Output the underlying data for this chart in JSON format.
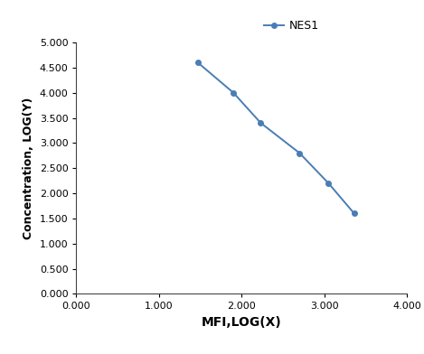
{
  "x": [
    1.47,
    1.9,
    2.23,
    2.7,
    3.05,
    3.36
  ],
  "y": [
    4.6,
    4.0,
    3.4,
    2.8,
    2.2,
    1.6
  ],
  "line_color": "#4a7db5",
  "marker": "o",
  "marker_size": 4,
  "legend_label": "NES1",
  "xlabel": "MFI,LOG(X)",
  "ylabel": "Concentration, LOG(Y)",
  "xlim": [
    0.0,
    4.0
  ],
  "ylim": [
    0.0,
    5.0
  ],
  "xticks": [
    0.0,
    1.0,
    2.0,
    3.0,
    4.0
  ],
  "yticks": [
    0.0,
    0.5,
    1.0,
    1.5,
    2.0,
    2.5,
    3.0,
    3.5,
    4.0,
    4.5,
    5.0
  ],
  "xlabel_fontsize": 10,
  "ylabel_fontsize": 9,
  "tick_fontsize": 8,
  "legend_fontsize": 9,
  "background_color": "#ffffff"
}
